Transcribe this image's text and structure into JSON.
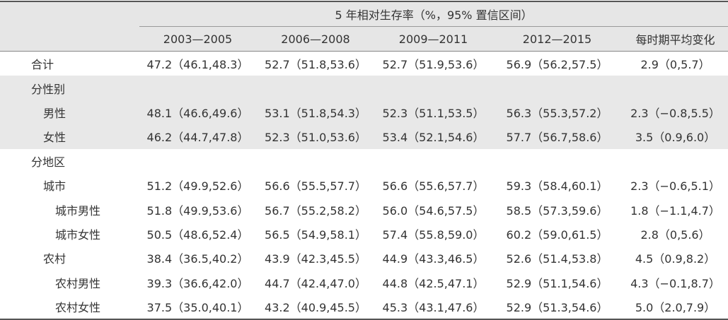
{
  "header": {
    "title": "5 年相对生存率（%，95% 置信区间）",
    "columns": [
      "2003—2005",
      "2006—2008",
      "2009—2011",
      "2012—2015",
      "每时期平均变化"
    ]
  },
  "total": {
    "label": "合计",
    "cells": [
      "47.2（46.1,48.3）",
      "52.7（51.8,53.6）",
      "52.7（51.9,53.6）",
      "56.9（56.2,57.5）",
      "2.9（0,5.7）"
    ]
  },
  "groups": [
    {
      "label": "分性别",
      "items": [
        {
          "label": "男性",
          "cells": [
            "48.1（46.6,49.6）",
            "53.1（51.8,54.3）",
            "52.3（51.1,53.5）",
            "56.3（55.3,57.2）",
            "2.3（−0.8,5.5）"
          ]
        },
        {
          "label": "女性",
          "cells": [
            "46.2（44.7,47.8）",
            "52.3（51.0,53.6）",
            "53.4（52.1,54.6）",
            "57.7（56.7,58.6）",
            "3.5（0.9,6.0）"
          ]
        }
      ]
    },
    {
      "label": "分地区",
      "items": [
        {
          "label": "城市",
          "cells": [
            "51.2（49.9,52.6）",
            "56.6（55.5,57.7）",
            "56.6（55.6,57.7）",
            "59.3（58.4,60.1）",
            "2.3（−0.6,5.1）"
          ],
          "subitems": [
            {
              "label": "城市男性",
              "cells": [
                "51.8（49.9,53.6）",
                "56.7（55.2,58.2）",
                "56.0（54.6,57.5）",
                "58.5（57.3,59.6）",
                "1.8（−1.1,4.7）"
              ]
            },
            {
              "label": "城市女性",
              "cells": [
                "50.5（48.6,52.4）",
                "56.5（54.9,58.1）",
                "57.4（55.8,59.0）",
                "60.2（59.0,61.5）",
                "2.8（0,5.6）"
              ]
            }
          ]
        },
        {
          "label": "农村",
          "cells": [
            "38.4（36.5,40.2）",
            "43.9（42.3,45.5）",
            "44.9（43.3,46.5）",
            "52.6（51.4,53.8）",
            "4.5（0.9,8.2）"
          ],
          "subitems": [
            {
              "label": "农村男性",
              "cells": [
                "39.3（36.6,42.0）",
                "44.7（42.4,47.0）",
                "44.8（42.5,47.1）",
                "52.9（51.1,54.6）",
                "4.3（−0.1,8.7）"
              ]
            },
            {
              "label": "农村女性",
              "cells": [
                "37.5（35.0,40.1）",
                "43.2（40.9,45.5）",
                "45.3（43.1,47.6）",
                "52.9（51.3,54.6）",
                "5.0（2.0,7.9）"
              ]
            }
          ]
        }
      ]
    }
  ]
}
